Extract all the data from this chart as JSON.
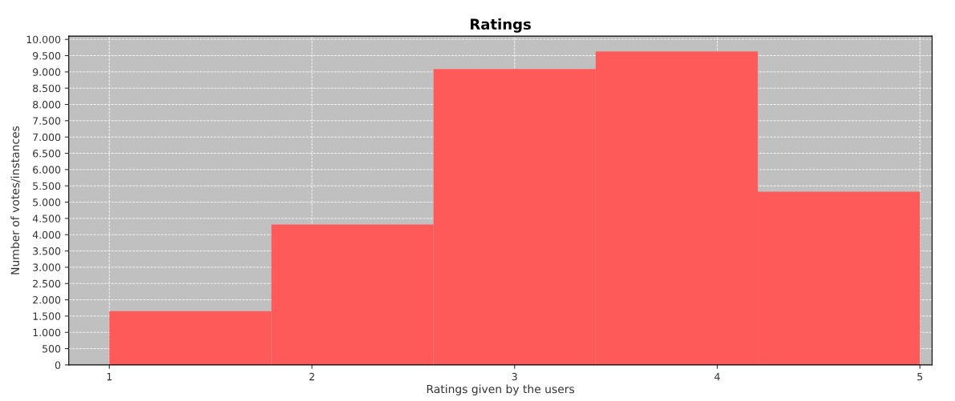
{
  "chart_data": {
    "type": "histogram",
    "title": "Ratings",
    "xlabel": "Ratings given by the users",
    "ylabel": "Number of votes/instances",
    "bins": [
      1,
      1.8,
      2.6,
      3.4,
      4.2,
      5
    ],
    "values": [
      1650,
      4310,
      9090,
      9630,
      5320
    ],
    "color": "#ff5a5a",
    "xlim": [
      0.8,
      5.06
    ],
    "xticks": [
      1,
      2,
      3,
      4,
      5
    ],
    "ylim": [
      0,
      10100
    ],
    "yticks": [
      {
        "value": 0,
        "label": "0"
      },
      {
        "value": 500,
        "label": "500"
      },
      {
        "value": 1000,
        "label": "1.000"
      },
      {
        "value": 1500,
        "label": "1.500"
      },
      {
        "value": 2000,
        "label": "2.000"
      },
      {
        "value": 2500,
        "label": "2.500"
      },
      {
        "value": 3000,
        "label": "3.000"
      },
      {
        "value": 3500,
        "label": "3.500"
      },
      {
        "value": 4000,
        "label": "4.000"
      },
      {
        "value": 4500,
        "label": "4.500"
      },
      {
        "value": 5000,
        "label": "5.000"
      },
      {
        "value": 5500,
        "label": "5.500"
      },
      {
        "value": 6000,
        "label": "6.000"
      },
      {
        "value": 6500,
        "label": "6.500"
      },
      {
        "value": 7000,
        "label": "7.000"
      },
      {
        "value": 7500,
        "label": "7.500"
      },
      {
        "value": 8000,
        "label": "8.000"
      },
      {
        "value": 8500,
        "label": "8.500"
      },
      {
        "value": 9000,
        "label": "9.000"
      },
      {
        "value": 9500,
        "label": "9.500"
      },
      {
        "value": 10000,
        "label": "10.000"
      }
    ],
    "grid": true
  }
}
